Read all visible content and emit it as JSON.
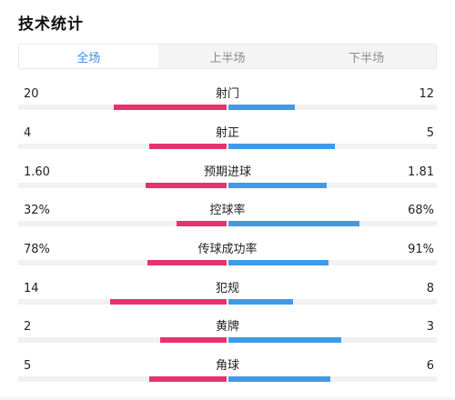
{
  "header": {
    "title": "技术统计"
  },
  "tabs": [
    {
      "label": "全场",
      "active": true
    },
    {
      "label": "上半场",
      "active": false
    },
    {
      "label": "下半场",
      "active": false
    }
  ],
  "colors": {
    "home": "#e6336c",
    "away": "#3d9be9",
    "active_tab": "#3b8fe8"
  },
  "stats": [
    {
      "name": "射门",
      "home": "20",
      "away": "12",
      "home_frac": 0.54,
      "away_frac": 0.32
    },
    {
      "name": "射正",
      "home": "4",
      "away": "5",
      "home_frac": 0.37,
      "away_frac": 0.51
    },
    {
      "name": "预期进球",
      "home": "1.60",
      "away": "1.81",
      "home_frac": 0.39,
      "away_frac": 0.47
    },
    {
      "name": "控球率",
      "home": "32%",
      "away": "68%",
      "home_frac": 0.24,
      "away_frac": 0.63
    },
    {
      "name": "传球成功率",
      "home": "78%",
      "away": "91%",
      "home_frac": 0.38,
      "away_frac": 0.48
    },
    {
      "name": "犯规",
      "home": "14",
      "away": "8",
      "home_frac": 0.56,
      "away_frac": 0.31
    },
    {
      "name": "黄牌",
      "home": "2",
      "away": "3",
      "home_frac": 0.32,
      "away_frac": 0.54
    },
    {
      "name": "角球",
      "home": "5",
      "away": "6",
      "home_frac": 0.37,
      "away_frac": 0.49
    }
  ]
}
